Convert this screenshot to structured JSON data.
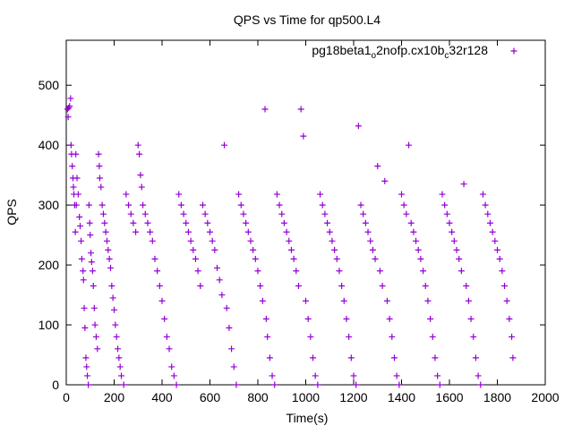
{
  "chart_data": {
    "type": "scatter",
    "title": "QPS vs Time for qp500.L4",
    "xlabel": "Time(s)",
    "ylabel": "QPS",
    "xlim": [
      0,
      2000
    ],
    "ylim": [
      0,
      575
    ],
    "xticks": [
      0,
      200,
      400,
      600,
      800,
      1000,
      1200,
      1400,
      1600,
      1800,
      2000
    ],
    "yticks": [
      0,
      100,
      200,
      300,
      400,
      500
    ],
    "grid": false,
    "legend_position": "top-right",
    "color": "#9400d3",
    "series": [
      {
        "legend_parts": [
          "pg18beta1",
          "o",
          "2nofp.cx10b",
          "c",
          "32r128"
        ],
        "points": [
          [
            5,
            460
          ],
          [
            8,
            447
          ],
          [
            10,
            462
          ],
          [
            14,
            465
          ],
          [
            18,
            478
          ],
          [
            20,
            400
          ],
          [
            22,
            385
          ],
          [
            25,
            365
          ],
          [
            28,
            345
          ],
          [
            30,
            330
          ],
          [
            32,
            318
          ],
          [
            35,
            300
          ],
          [
            38,
            255
          ],
          [
            40,
            385
          ],
          [
            42,
            300
          ],
          [
            45,
            345
          ],
          [
            50,
            318
          ],
          [
            55,
            280
          ],
          [
            58,
            265
          ],
          [
            62,
            240
          ],
          [
            65,
            210
          ],
          [
            70,
            190
          ],
          [
            72,
            175
          ],
          [
            75,
            128
          ],
          [
            78,
            95
          ],
          [
            82,
            45
          ],
          [
            85,
            30
          ],
          [
            88,
            15
          ],
          [
            92,
            0
          ],
          [
            95,
            300
          ],
          [
            98,
            270
          ],
          [
            100,
            250
          ],
          [
            103,
            220
          ],
          [
            106,
            205
          ],
          [
            110,
            190
          ],
          [
            113,
            165
          ],
          [
            117,
            128
          ],
          [
            120,
            100
          ],
          [
            125,
            80
          ],
          [
            130,
            60
          ],
          [
            135,
            385
          ],
          [
            138,
            365
          ],
          [
            140,
            345
          ],
          [
            145,
            330
          ],
          [
            150,
            300
          ],
          [
            155,
            285
          ],
          [
            160,
            270
          ],
          [
            165,
            255
          ],
          [
            170,
            240
          ],
          [
            175,
            225
          ],
          [
            180,
            210
          ],
          [
            185,
            195
          ],
          [
            190,
            165
          ],
          [
            195,
            145
          ],
          [
            200,
            125
          ],
          [
            205,
            100
          ],
          [
            210,
            80
          ],
          [
            215,
            60
          ],
          [
            220,
            45
          ],
          [
            225,
            30
          ],
          [
            230,
            15
          ],
          [
            240,
            0
          ],
          [
            250,
            318
          ],
          [
            260,
            300
          ],
          [
            270,
            285
          ],
          [
            280,
            270
          ],
          [
            290,
            255
          ],
          [
            300,
            400
          ],
          [
            305,
            385
          ],
          [
            310,
            350
          ],
          [
            315,
            330
          ],
          [
            320,
            300
          ],
          [
            330,
            285
          ],
          [
            340,
            270
          ],
          [
            350,
            255
          ],
          [
            360,
            240
          ],
          [
            370,
            210
          ],
          [
            380,
            190
          ],
          [
            390,
            165
          ],
          [
            400,
            140
          ],
          [
            410,
            110
          ],
          [
            420,
            80
          ],
          [
            430,
            60
          ],
          [
            440,
            30
          ],
          [
            450,
            15
          ],
          [
            460,
            0
          ],
          [
            470,
            318
          ],
          [
            480,
            300
          ],
          [
            490,
            285
          ],
          [
            500,
            270
          ],
          [
            510,
            255
          ],
          [
            520,
            240
          ],
          [
            530,
            225
          ],
          [
            540,
            210
          ],
          [
            550,
            190
          ],
          [
            560,
            165
          ],
          [
            570,
            300
          ],
          [
            580,
            285
          ],
          [
            590,
            270
          ],
          [
            600,
            255
          ],
          [
            610,
            240
          ],
          [
            620,
            225
          ],
          [
            630,
            195
          ],
          [
            640,
            175
          ],
          [
            650,
            150
          ],
          [
            660,
            400
          ],
          [
            670,
            128
          ],
          [
            680,
            95
          ],
          [
            690,
            60
          ],
          [
            700,
            30
          ],
          [
            710,
            0
          ],
          [
            720,
            318
          ],
          [
            730,
            300
          ],
          [
            740,
            285
          ],
          [
            750,
            270
          ],
          [
            760,
            255
          ],
          [
            770,
            240
          ],
          [
            780,
            225
          ],
          [
            790,
            210
          ],
          [
            800,
            190
          ],
          [
            810,
            165
          ],
          [
            820,
            140
          ],
          [
            830,
            460
          ],
          [
            835,
            110
          ],
          [
            840,
            80
          ],
          [
            850,
            45
          ],
          [
            860,
            15
          ],
          [
            870,
            0
          ],
          [
            880,
            318
          ],
          [
            890,
            300
          ],
          [
            900,
            285
          ],
          [
            910,
            270
          ],
          [
            920,
            255
          ],
          [
            930,
            240
          ],
          [
            940,
            225
          ],
          [
            950,
            210
          ],
          [
            960,
            190
          ],
          [
            970,
            165
          ],
          [
            980,
            460
          ],
          [
            990,
            415
          ],
          [
            1000,
            140
          ],
          [
            1010,
            110
          ],
          [
            1020,
            80
          ],
          [
            1030,
            45
          ],
          [
            1040,
            15
          ],
          [
            1050,
            0
          ],
          [
            1060,
            318
          ],
          [
            1070,
            300
          ],
          [
            1080,
            285
          ],
          [
            1090,
            270
          ],
          [
            1100,
            255
          ],
          [
            1110,
            240
          ],
          [
            1120,
            225
          ],
          [
            1130,
            210
          ],
          [
            1140,
            190
          ],
          [
            1150,
            165
          ],
          [
            1160,
            140
          ],
          [
            1170,
            110
          ],
          [
            1180,
            80
          ],
          [
            1190,
            45
          ],
          [
            1200,
            15
          ],
          [
            1210,
            0
          ],
          [
            1220,
            432
          ],
          [
            1230,
            300
          ],
          [
            1240,
            285
          ],
          [
            1250,
            270
          ],
          [
            1260,
            255
          ],
          [
            1270,
            240
          ],
          [
            1280,
            225
          ],
          [
            1290,
            210
          ],
          [
            1300,
            365
          ],
          [
            1310,
            190
          ],
          [
            1320,
            165
          ],
          [
            1330,
            340
          ],
          [
            1340,
            140
          ],
          [
            1350,
            110
          ],
          [
            1360,
            80
          ],
          [
            1370,
            45
          ],
          [
            1380,
            15
          ],
          [
            1390,
            0
          ],
          [
            1400,
            318
          ],
          [
            1410,
            300
          ],
          [
            1420,
            285
          ],
          [
            1430,
            400
          ],
          [
            1440,
            270
          ],
          [
            1450,
            255
          ],
          [
            1460,
            240
          ],
          [
            1470,
            225
          ],
          [
            1480,
            210
          ],
          [
            1490,
            190
          ],
          [
            1500,
            165
          ],
          [
            1510,
            140
          ],
          [
            1520,
            110
          ],
          [
            1530,
            80
          ],
          [
            1540,
            45
          ],
          [
            1550,
            15
          ],
          [
            1560,
            0
          ],
          [
            1570,
            318
          ],
          [
            1580,
            300
          ],
          [
            1590,
            285
          ],
          [
            1600,
            270
          ],
          [
            1610,
            255
          ],
          [
            1620,
            240
          ],
          [
            1630,
            225
          ],
          [
            1640,
            210
          ],
          [
            1650,
            190
          ],
          [
            1660,
            335
          ],
          [
            1670,
            165
          ],
          [
            1680,
            140
          ],
          [
            1690,
            110
          ],
          [
            1700,
            80
          ],
          [
            1710,
            45
          ],
          [
            1720,
            15
          ],
          [
            1730,
            0
          ],
          [
            1740,
            318
          ],
          [
            1750,
            300
          ],
          [
            1760,
            285
          ],
          [
            1770,
            270
          ],
          [
            1780,
            255
          ],
          [
            1790,
            240
          ],
          [
            1800,
            225
          ],
          [
            1810,
            210
          ],
          [
            1820,
            190
          ],
          [
            1830,
            165
          ],
          [
            1840,
            140
          ],
          [
            1850,
            110
          ],
          [
            1860,
            80
          ],
          [
            1865,
            45
          ]
        ]
      }
    ]
  }
}
